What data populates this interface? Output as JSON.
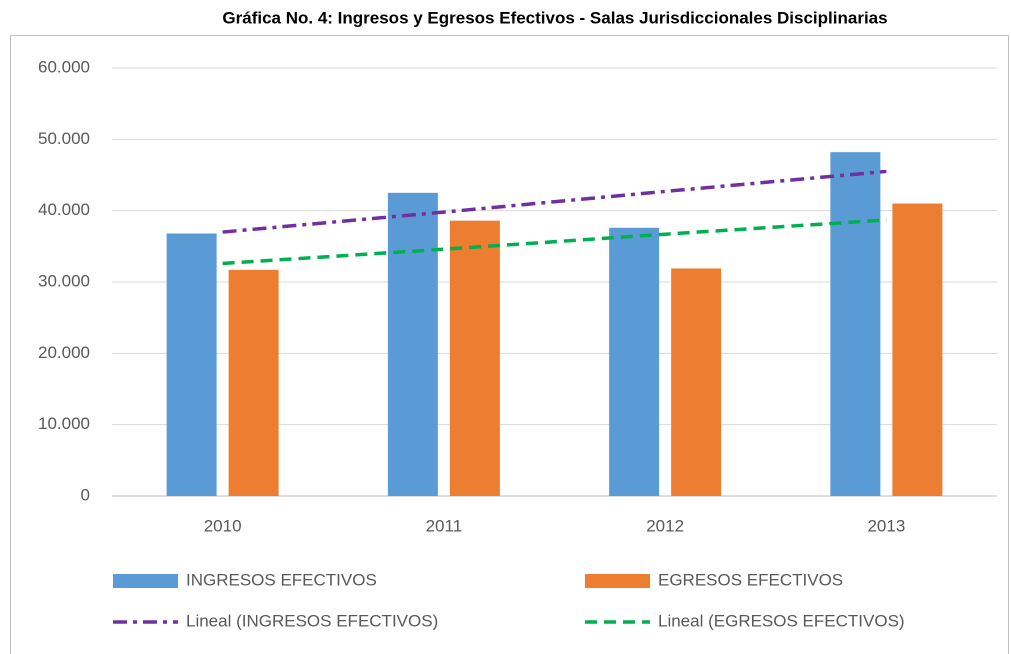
{
  "chart_data": {
    "type": "bar",
    "title": "Gráfica No.  4: Ingresos y Egresos Efectivos - Salas Jurisdiccionales Disciplinarias",
    "categories": [
      "2010",
      "2011",
      "2012",
      "2013"
    ],
    "series": [
      {
        "name": "INGRESOS EFECTIVOS",
        "color": "#5b9bd5",
        "type": "bar",
        "values": [
          36800,
          42500,
          37600,
          48200
        ]
      },
      {
        "name": "EGRESOS EFECTIVOS",
        "color": "#ed7d31",
        "type": "bar",
        "values": [
          31700,
          38600,
          31900,
          41000
        ]
      },
      {
        "name": "Lineal (INGRESOS EFECTIVOS)",
        "color": "#7030a0",
        "type": "line",
        "style": "dash-dot",
        "values": [
          37000,
          39800,
          42700,
          45500
        ]
      },
      {
        "name": "Lineal (EGRESOS EFECTIVOS)",
        "color": "#00b050",
        "type": "line",
        "style": "dash",
        "values": [
          32600,
          34600,
          36700,
          38700
        ]
      }
    ],
    "ylim": [
      0,
      60000
    ],
    "yticks": [
      0,
      {
        "value": 10000,
        "label": "10.000"
      },
      {
        "value": 20000,
        "label": "20.000"
      },
      {
        "value": 30000,
        "label": "30.000"
      },
      {
        "value": 40000,
        "label": "40.000"
      },
      {
        "value": 50000,
        "label": "50.000"
      },
      {
        "value": 60000,
        "label": "60.000"
      }
    ],
    "grid": true
  }
}
